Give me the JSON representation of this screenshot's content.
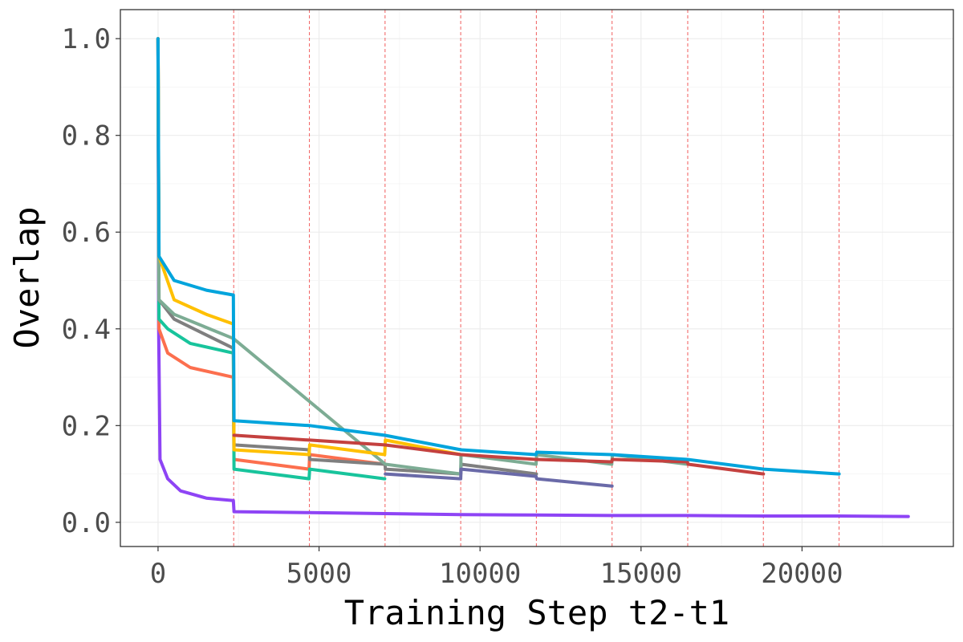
{
  "chart_data": {
    "type": "line",
    "title": "",
    "xlabel": "Training Step t2-t1",
    "ylabel": "Overlap",
    "xlim": [
      -1170,
      24700
    ],
    "ylim": [
      -0.05,
      1.06
    ],
    "x_ticks": [
      0,
      5000,
      10000,
      15000,
      20000
    ],
    "x_tick_labels": [
      "0",
      "5000",
      "10000",
      "15000",
      "20000"
    ],
    "y_ticks": [
      0.0,
      0.2,
      0.4,
      0.6,
      0.8,
      1.0
    ],
    "y_tick_labels": [
      "0.0",
      "0.2",
      "0.4",
      "0.6",
      "0.8",
      "1.0"
    ],
    "grid": true,
    "legend": "none",
    "boundary_lines": {
      "color": "#f26b6b",
      "style": "dashed",
      "x": [
        2350,
        4700,
        7050,
        9400,
        11750,
        14100,
        16450,
        18800,
        21150
      ]
    },
    "series": [
      {
        "color": "#8e44f5",
        "points": [
          [
            0,
            1.0
          ],
          [
            20,
            0.4
          ],
          [
            60,
            0.13
          ],
          [
            300,
            0.09
          ],
          [
            700,
            0.065
          ],
          [
            1500,
            0.05
          ],
          [
            2340,
            0.045
          ],
          [
            2360,
            0.022
          ],
          [
            4700,
            0.02
          ],
          [
            7050,
            0.018
          ],
          [
            9400,
            0.016
          ],
          [
            11750,
            0.015
          ],
          [
            14100,
            0.014
          ],
          [
            16450,
            0.014
          ],
          [
            18800,
            0.013
          ],
          [
            21150,
            0.013
          ],
          [
            23300,
            0.012
          ]
        ]
      },
      {
        "color": "#fc6f4e",
        "points": [
          [
            0,
            1.0
          ],
          [
            30,
            0.4
          ],
          [
            300,
            0.35
          ],
          [
            1000,
            0.32
          ],
          [
            2340,
            0.3
          ],
          [
            2360,
            0.13
          ],
          [
            4690,
            0.11
          ],
          [
            4710,
            0.14
          ],
          [
            7040,
            0.12
          ]
        ]
      },
      {
        "color": "#18c49c",
        "points": [
          [
            0,
            1.0
          ],
          [
            30,
            0.42
          ],
          [
            300,
            0.4
          ],
          [
            1000,
            0.37
          ],
          [
            2340,
            0.35
          ],
          [
            2360,
            0.11
          ],
          [
            4690,
            0.09
          ],
          [
            4710,
            0.11
          ],
          [
            7040,
            0.09
          ]
        ]
      },
      {
        "color": "#7f7f7f",
        "points": [
          [
            0,
            1.0
          ],
          [
            30,
            0.46
          ],
          [
            500,
            0.42
          ],
          [
            2340,
            0.36
          ],
          [
            2360,
            0.16
          ],
          [
            4690,
            0.15
          ],
          [
            4710,
            0.13
          ],
          [
            7050,
            0.12
          ],
          [
            7060,
            0.11
          ],
          [
            9400,
            0.1
          ],
          [
            9410,
            0.12
          ],
          [
            11750,
            0.1
          ]
        ]
      },
      {
        "color": "#7dac94",
        "points": [
          [
            0,
            1.0
          ],
          [
            30,
            0.46
          ],
          [
            500,
            0.43
          ],
          [
            2340,
            0.38
          ],
          [
            7060,
            0.12
          ],
          [
            9400,
            0.1
          ],
          [
            9410,
            0.14
          ],
          [
            11740,
            0.12
          ],
          [
            11760,
            0.14
          ],
          [
            14090,
            0.12
          ],
          [
            14110,
            0.14
          ],
          [
            16440,
            0.12
          ]
        ]
      },
      {
        "color": "#6a6aa8",
        "points": [
          [
            7060,
            0.1
          ],
          [
            9400,
            0.09
          ],
          [
            9410,
            0.11
          ],
          [
            11740,
            0.095
          ],
          [
            11760,
            0.09
          ],
          [
            14100,
            0.075
          ]
        ]
      },
      {
        "color": "#ffc000",
        "points": [
          [
            0,
            1.0
          ],
          [
            30,
            0.55
          ],
          [
            500,
            0.46
          ],
          [
            1500,
            0.43
          ],
          [
            2340,
            0.41
          ],
          [
            2360,
            0.15
          ],
          [
            4690,
            0.14
          ],
          [
            4710,
            0.16
          ],
          [
            7040,
            0.14
          ],
          [
            7060,
            0.17
          ],
          [
            9400,
            0.14
          ]
        ]
      },
      {
        "color": "#c4413f",
        "points": [
          [
            2360,
            0.18
          ],
          [
            4690,
            0.17
          ],
          [
            4710,
            0.17
          ],
          [
            7040,
            0.16
          ],
          [
            9410,
            0.14
          ],
          [
            11740,
            0.13
          ],
          [
            11760,
            0.13
          ],
          [
            14090,
            0.125
          ],
          [
            14110,
            0.13
          ],
          [
            16440,
            0.125
          ],
          [
            16460,
            0.12
          ],
          [
            18800,
            0.1
          ]
        ]
      },
      {
        "color": "#00a4dc",
        "points": [
          [
            0,
            1.0
          ],
          [
            30,
            0.55
          ],
          [
            500,
            0.5
          ],
          [
            1500,
            0.48
          ],
          [
            2340,
            0.47
          ],
          [
            2360,
            0.21
          ],
          [
            4690,
            0.2
          ],
          [
            4710,
            0.2
          ],
          [
            7040,
            0.18
          ],
          [
            9410,
            0.15
          ],
          [
            11740,
            0.14
          ],
          [
            11760,
            0.145
          ],
          [
            14090,
            0.14
          ],
          [
            14110,
            0.14
          ],
          [
            16440,
            0.13
          ],
          [
            18810,
            0.11
          ],
          [
            21150,
            0.1
          ]
        ]
      }
    ]
  }
}
